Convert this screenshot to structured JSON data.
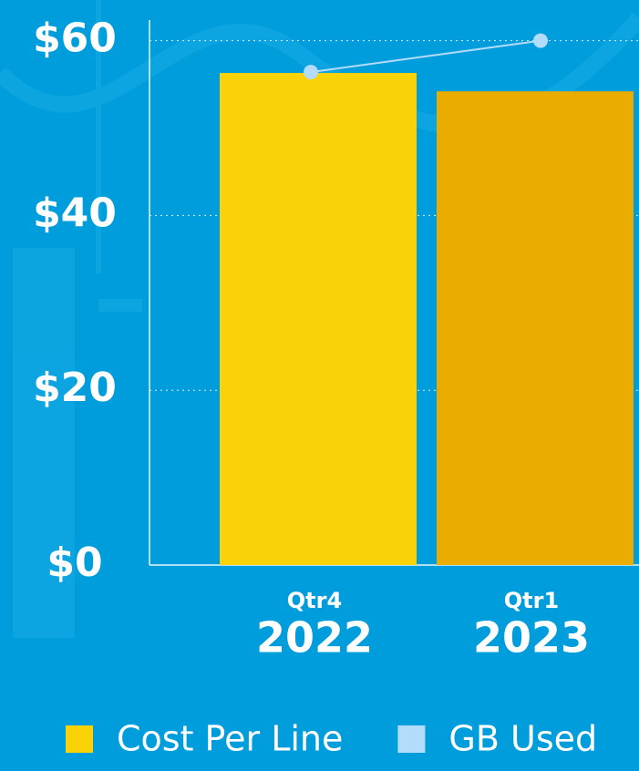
{
  "chart_data": {
    "type": "bar",
    "categories": [
      [
        "Qtr4",
        "2022"
      ],
      [
        "Qtr1",
        "2023"
      ]
    ],
    "series": [
      {
        "name": "Cost Per Line",
        "color": "#f9d308",
        "colors": [
          "#f9d308",
          "#ebac00"
        ],
        "values": [
          56.3,
          54.2
        ]
      },
      {
        "name": "GB Used",
        "type": "line",
        "color": "#b3dcfb",
        "values": [
          56.4,
          60
        ]
      }
    ],
    "ylim": [
      0,
      61
    ],
    "yticks": [
      {
        "value": 0,
        "label": "$0"
      },
      {
        "value": 20,
        "label": "$20"
      },
      {
        "value": 40,
        "label": "$40"
      },
      {
        "value": 60,
        "label": "$60"
      }
    ],
    "grid": true
  }
}
